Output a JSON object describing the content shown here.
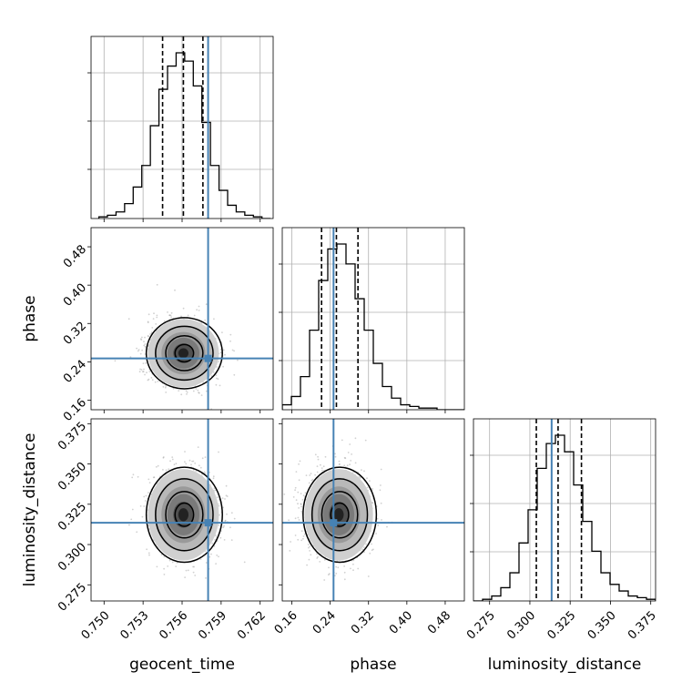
{
  "chart_data": {
    "type": "corner",
    "parameters": [
      {
        "name": "geocent_time",
        "xlabel": "geocent_time",
        "range": [
          0.749,
          0.763
        ],
        "ticks": [
          "0.750",
          "0.753",
          "0.756",
          "0.759",
          "0.762"
        ],
        "tick_values": [
          0.75,
          0.753,
          0.756,
          0.759,
          0.762
        ],
        "quantiles": [
          0.7545,
          0.7561,
          0.7576
        ],
        "truth": 0.758,
        "hist_edges_start": 0.7496,
        "hist_bin_width": 0.00066,
        "hist_counts": [
          1,
          2,
          4,
          9,
          19,
          32,
          56,
          78,
          92,
          100,
          95,
          80,
          58,
          32,
          17,
          8,
          4,
          2,
          1,
          0
        ]
      },
      {
        "name": "phase",
        "xlabel": "phase",
        "ylabel": "phase",
        "range": [
          0.14,
          0.52
        ],
        "ticks": [
          "0.16",
          "0.24",
          "0.32",
          "0.40",
          "0.48"
        ],
        "tick_values": [
          0.16,
          0.24,
          0.32,
          0.4,
          0.48
        ],
        "quantiles": [
          0.222,
          0.253,
          0.298
        ],
        "truth": 0.247,
        "hist_edges_start": 0.14,
        "hist_bin_width": 0.019,
        "hist_counts": [
          3,
          8,
          20,
          48,
          78,
          97,
          100,
          88,
          67,
          48,
          28,
          14,
          7,
          3,
          2,
          1,
          1,
          0,
          0,
          0
        ]
      },
      {
        "name": "luminosity_distance",
        "xlabel": "luminosity_distance",
        "ylabel": "luminosity_distance",
        "range": [
          0.265,
          0.378
        ],
        "ticks": [
          "0.275",
          "0.300",
          "0.325",
          "0.350",
          "0.375"
        ],
        "tick_values": [
          0.275,
          0.3,
          0.325,
          0.35,
          0.375
        ],
        "quantiles": [
          0.304,
          0.3175,
          0.332
        ],
        "truth": 0.3135,
        "hist_edges_start": 0.265,
        "hist_bin_width": 0.00565,
        "hist_counts": [
          0,
          1,
          3,
          8,
          17,
          35,
          55,
          80,
          95,
          100,
          90,
          70,
          48,
          30,
          17,
          10,
          6,
          3,
          2,
          1
        ]
      }
    ],
    "joint": [
      {
        "x": "geocent_time",
        "y": "phase",
        "mean": [
          0.7561,
          0.258
        ],
        "sd": [
          0.0013,
          0.034
        ],
        "truth_marker": [
          0.758,
          0.247
        ]
      },
      {
        "x": "geocent_time",
        "y": "luminosity_distance",
        "mean": [
          0.7561,
          0.3185
        ],
        "sd": [
          0.0013,
          0.0135
        ],
        "truth_marker": [
          0.758,
          0.3135
        ]
      },
      {
        "x": "phase",
        "y": "luminosity_distance",
        "mean": [
          0.258,
          0.3185
        ],
        "sd": [
          0.034,
          0.0135
        ],
        "truth_marker": [
          0.247,
          0.3135
        ]
      }
    ],
    "grid": true,
    "colors": {
      "hist": "#000000",
      "quantile": "#000000",
      "truth": "#4682b4",
      "grid": "#b0b0b0",
      "points": "#9a9a9a"
    }
  }
}
